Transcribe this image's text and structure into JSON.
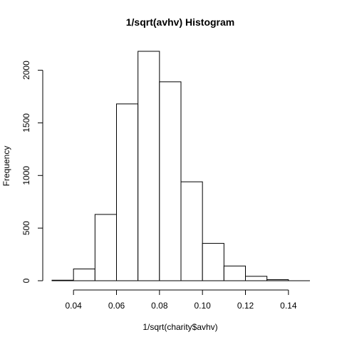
{
  "chart_data": {
    "type": "bar",
    "title": "1/sqrt(avhv) Histogram",
    "xlabel": "1/sqrt(charity$avhv)",
    "ylabel": "Frequency",
    "bins": [
      {
        "from": 0.03,
        "to": 0.04,
        "count": 5
      },
      {
        "from": 0.04,
        "to": 0.05,
        "count": 112
      },
      {
        "from": 0.05,
        "to": 0.06,
        "count": 630
      },
      {
        "from": 0.06,
        "to": 0.07,
        "count": 1680
      },
      {
        "from": 0.07,
        "to": 0.08,
        "count": 2180
      },
      {
        "from": 0.08,
        "to": 0.09,
        "count": 1890
      },
      {
        "from": 0.09,
        "to": 0.1,
        "count": 940
      },
      {
        "from": 0.1,
        "to": 0.11,
        "count": 355
      },
      {
        "from": 0.11,
        "to": 0.12,
        "count": 140
      },
      {
        "from": 0.12,
        "to": 0.13,
        "count": 42
      },
      {
        "from": 0.13,
        "to": 0.14,
        "count": 10
      },
      {
        "from": 0.14,
        "to": 0.15,
        "count": 0
      }
    ],
    "xlim": [
      0.03,
      0.15
    ],
    "ylim": [
      0,
      2180
    ],
    "xticks": [
      0.04,
      0.06,
      0.08,
      0.1,
      0.12,
      0.14
    ],
    "xtick_labels": [
      "0.04",
      "0.06",
      "0.08",
      "0.10",
      "0.12",
      "0.14"
    ],
    "yticks": [
      0,
      500,
      1000,
      1500,
      2000
    ],
    "ytick_labels": [
      "0",
      "500",
      "1000",
      "1500",
      "2000"
    ],
    "grid": false,
    "bar_fill": "#ffffff",
    "bar_stroke": "#000000"
  }
}
